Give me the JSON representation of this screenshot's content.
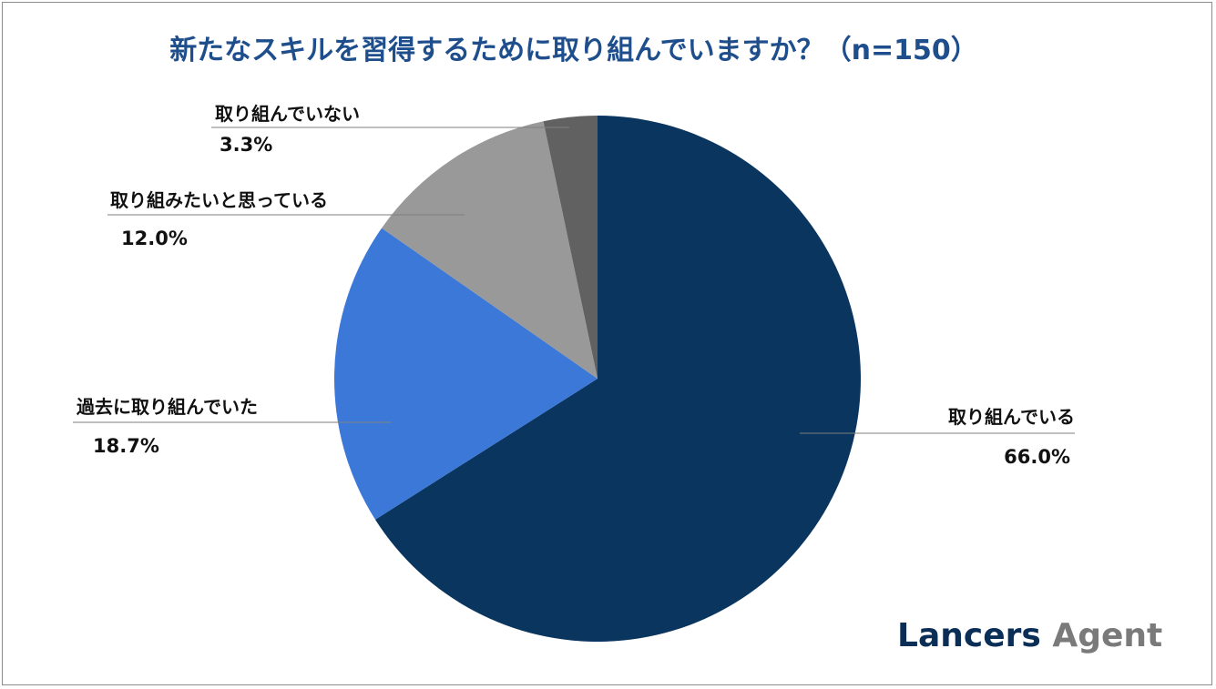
{
  "title": "新たなスキルを習得するために取り組んでいますか？（n=150）",
  "logo": {
    "brand": "Lancers",
    "product": "Agent"
  },
  "chart_data": {
    "type": "pie",
    "title": "新たなスキルを習得するために取り組んでいますか？（n=150）",
    "slices": [
      {
        "label": "取り組んでいる",
        "value": 66.0,
        "display": "66.0%",
        "color": "#0a355f"
      },
      {
        "label": "過去に取り組んでいた",
        "value": 18.7,
        "display": "18.7%",
        "color": "#3c78d8"
      },
      {
        "label": "取り組みたいと思っている",
        "value": 12.0,
        "display": "12.0%",
        "color": "#999999"
      },
      {
        "label": "取り組んでいない",
        "value": 3.3,
        "display": "3.3%",
        "color": "#616161"
      }
    ],
    "start": "12 o'clock",
    "direction": "clockwise"
  }
}
